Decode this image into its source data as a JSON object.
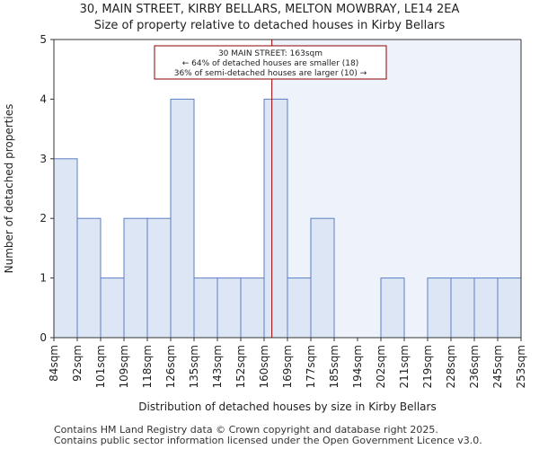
{
  "title": "30, MAIN STREET, KIRBY BELLARS, MELTON MOWBRAY, LE14 2EA",
  "subtitle": "Size of property relative to detached houses in Kirby Bellars",
  "footer": [
    "Contains HM Land Registry data © Crown copyright and database right 2025.",
    "Contains public sector information licensed under the Open Government Licence v3.0."
  ],
  "colors": {
    "bar_fill": "#dce6f4",
    "bar_stroke": "#5b7fc4",
    "highlight_bg": "#eef2fb",
    "marker_line": "#8b0000",
    "annotation_border": "#8b0000"
  },
  "chart_data": {
    "type": "bar",
    "xlabel": "Distribution of detached houses by size in Kirby Bellars",
    "ylabel": "Number of detached properties",
    "ylim": [
      0,
      5
    ],
    "yticks": [
      0,
      1,
      2,
      3,
      4,
      5
    ],
    "bin_edges": [
      84,
      92,
      101,
      109,
      118,
      126,
      135,
      143,
      152,
      160,
      169,
      177,
      185,
      194,
      202,
      211,
      219,
      228,
      236,
      245,
      253
    ],
    "tick_labels": [
      "84sqm",
      "92sqm",
      "101sqm",
      "109sqm",
      "118sqm",
      "126sqm",
      "135sqm",
      "143sqm",
      "152sqm",
      "160sqm",
      "169sqm",
      "177sqm",
      "185sqm",
      "194sqm",
      "202sqm",
      "211sqm",
      "219sqm",
      "228sqm",
      "236sqm",
      "245sqm",
      "253sqm"
    ],
    "values": [
      3,
      2,
      1,
      2,
      2,
      4,
      1,
      1,
      1,
      4,
      1,
      2,
      0,
      0,
      1,
      0,
      1,
      1,
      1,
      1
    ],
    "grid": "none",
    "marker": {
      "value": 163,
      "lines": [
        "30 MAIN STREET: 163sqm",
        "← 64% of detached houses are smaller (18)",
        "36% of semi-detached houses are larger (10) →"
      ]
    }
  }
}
